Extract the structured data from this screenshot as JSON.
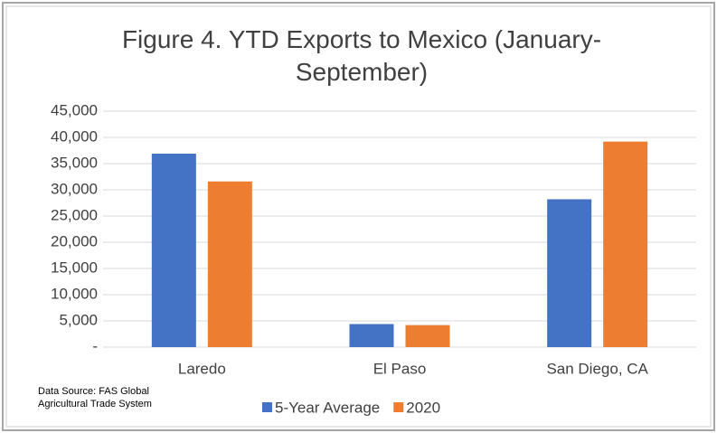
{
  "chart_data": {
    "type": "bar",
    "title": "Figure 4. YTD Exports to Mexico (January-September)",
    "note": "Data Source: FAS Global Agricultural Trade System",
    "categories": [
      "Laredo",
      "El Paso",
      "San Diego, CA"
    ],
    "series": [
      {
        "name": "5-Year Average",
        "color": "#4472c4",
        "values": [
          36900,
          4400,
          28200
        ]
      },
      {
        "name": "2020",
        "color": "#ed7d31",
        "values": [
          31600,
          4200,
          39200
        ]
      }
    ],
    "ylim": [
      0,
      45000
    ],
    "yticks": [
      {
        "value": 0,
        "label": "-"
      },
      {
        "value": 5000,
        "label": "5,000"
      },
      {
        "value": 10000,
        "label": "10,000"
      },
      {
        "value": 15000,
        "label": "15,000"
      },
      {
        "value": 20000,
        "label": "20,000"
      },
      {
        "value": 25000,
        "label": "25,000"
      },
      {
        "value": 30000,
        "label": "30,000"
      },
      {
        "value": 35000,
        "label": "35,000"
      },
      {
        "value": 40000,
        "label": "40,000"
      },
      {
        "value": 45000,
        "label": "45,000"
      }
    ],
    "grid": true,
    "legend": "bottom"
  }
}
